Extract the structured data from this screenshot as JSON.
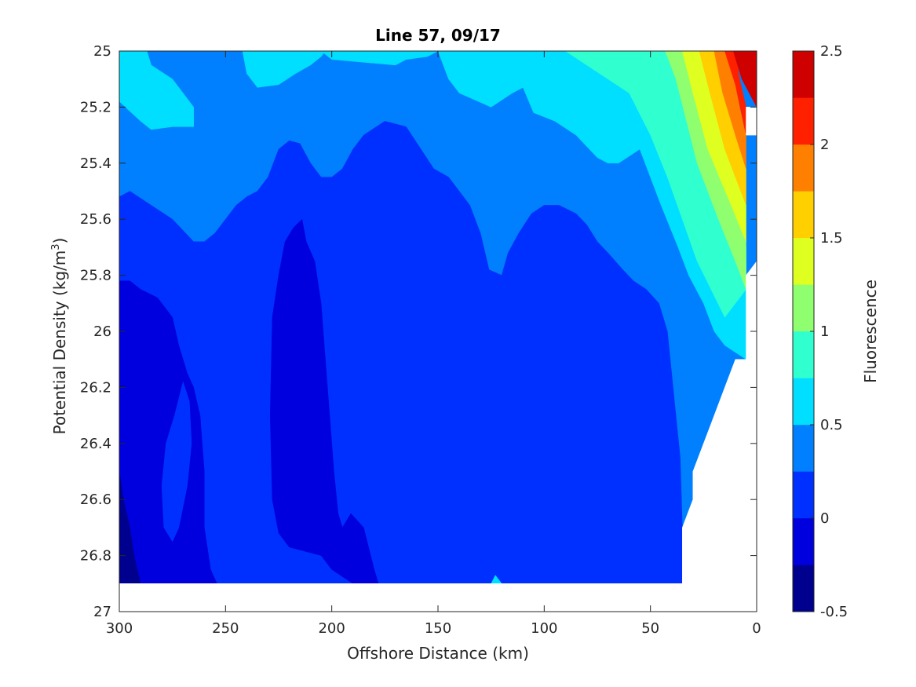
{
  "chart_data": {
    "type": "contourf",
    "title": "Line 57, 09/17",
    "xlabel": "Offshore Distance (km)",
    "ylabel_prefix": "Potential Density (kg/m",
    "ylabel_sup": "3",
    "ylabel_suffix": ")",
    "colorbar_label": "Fluorescence",
    "xlim": [
      300,
      0
    ],
    "ylim": [
      25,
      27
    ],
    "x_reversed": true,
    "y_reversed": true,
    "xticks": [
      300,
      250,
      200,
      150,
      100,
      50,
      0
    ],
    "xtick_labels": [
      "300",
      "250",
      "200",
      "150",
      "100",
      "50",
      "0"
    ],
    "yticks": [
      25,
      25.2,
      25.4,
      25.6,
      25.8,
      26,
      26.2,
      26.4,
      26.6,
      26.8,
      27
    ],
    "ytick_labels": [
      "25",
      "25.2",
      "25.4",
      "25.6",
      "25.8",
      "26",
      "26.2",
      "26.4",
      "26.6",
      "26.8",
      "27"
    ],
    "colorbar_range": [
      -0.5,
      2.5
    ],
    "colorbar_ticks": [
      -0.5,
      0,
      0.5,
      1,
      1.5,
      2,
      2.5
    ],
    "colorbar_tick_labels": [
      "-0.5",
      "0",
      "0.5",
      "1",
      "1.5",
      "2",
      "2.5"
    ],
    "levels": [
      -0.5,
      -0.25,
      0,
      0.25,
      0.5,
      0.75,
      1,
      1.25,
      1.5,
      1.75,
      2,
      2.25,
      2.5
    ],
    "level_colors": [
      "#00008f",
      "#0000df",
      "#0030ff",
      "#0080ff",
      "#00dfff",
      "#30ffcf",
      "#8fff70",
      "#dfff20",
      "#ffcf00",
      "#ff7f00",
      "#ff2000",
      "#cf0000"
    ],
    "data_extent": {
      "x": [
        300,
        0
      ],
      "y_top": 25,
      "y_bottom": 26.9
    },
    "contour_regions": [
      {
        "level": 1,
        "color": "#0080ff",
        "points": [
          [
            300,
            25
          ],
          [
            300,
            26.9
          ],
          [
            0,
            26.9
          ],
          [
            0,
            25
          ]
        ]
      },
      {
        "level": 4,
        "color": "#00dfff",
        "points": [
          [
            300,
            25
          ],
          [
            300,
            25.18
          ],
          [
            290,
            25.25
          ],
          [
            285,
            25.28
          ],
          [
            275,
            25.27
          ],
          [
            270,
            25.27
          ],
          [
            265,
            25.27
          ],
          [
            265,
            25.2
          ],
          [
            270,
            25.15
          ],
          [
            275,
            25.1
          ],
          [
            285,
            25.05
          ],
          [
            287,
            25
          ]
        ]
      },
      {
        "level": 4,
        "color": "#00dfff",
        "points": [
          [
            222,
            25
          ],
          [
            205,
            25
          ],
          [
            200,
            25.03
          ],
          [
            170,
            25.05
          ],
          [
            165,
            25.03
          ],
          [
            155,
            25.02
          ],
          [
            150,
            25
          ]
        ]
      },
      {
        "level": 4,
        "color": "#00dfff",
        "points": [
          [
            150,
            25
          ],
          [
            145,
            25.1
          ],
          [
            140,
            25.15
          ],
          [
            125,
            25.2
          ],
          [
            115,
            25.15
          ],
          [
            110,
            25.13
          ],
          [
            105,
            25.22
          ],
          [
            95,
            25.25
          ],
          [
            85,
            25.3
          ],
          [
            75,
            25.38
          ],
          [
            70,
            25.4
          ],
          [
            65,
            25.4
          ],
          [
            55,
            25.35
          ],
          [
            45,
            25.55
          ],
          [
            37,
            25.7
          ],
          [
            32,
            25.8
          ],
          [
            25,
            25.9
          ],
          [
            20,
            26.0
          ],
          [
            15,
            26.05
          ],
          [
            5,
            26.1
          ],
          [
            5,
            25.75
          ],
          [
            12,
            25.6
          ],
          [
            25,
            25.25
          ],
          [
            32,
            25.05
          ],
          [
            38,
            25
          ]
        ]
      },
      {
        "level": 5,
        "color": "#30ffcf",
        "points": [
          [
            90,
            25
          ],
          [
            80,
            25.05
          ],
          [
            70,
            25.1
          ],
          [
            60,
            25.15
          ],
          [
            50,
            25.3
          ],
          [
            42,
            25.45
          ],
          [
            35,
            25.6
          ],
          [
            28,
            25.75
          ],
          [
            15,
            25.95
          ],
          [
            5,
            25.85
          ],
          [
            5,
            25.7
          ],
          [
            12,
            25.55
          ],
          [
            22,
            25.25
          ],
          [
            30,
            25.05
          ],
          [
            33,
            25
          ]
        ]
      },
      {
        "level": 6,
        "color": "#8fff70",
        "points": [
          [
            43,
            25
          ],
          [
            38,
            25.1
          ],
          [
            33,
            25.25
          ],
          [
            28,
            25.4
          ],
          [
            18,
            25.6
          ],
          [
            10,
            25.75
          ],
          [
            5,
            25.85
          ],
          [
            5,
            25.68
          ],
          [
            12,
            25.5
          ],
          [
            18,
            25.25
          ],
          [
            24,
            25.05
          ],
          [
            26,
            25
          ]
        ]
      },
      {
        "level": 7,
        "color": "#dfff20",
        "points": [
          [
            35,
            25
          ],
          [
            30,
            25.15
          ],
          [
            23,
            25.35
          ],
          [
            12,
            25.55
          ],
          [
            5,
            25.68
          ],
          [
            5,
            25.55
          ],
          [
            10,
            25.4
          ],
          [
            15,
            25.2
          ],
          [
            19,
            25
          ]
        ]
      },
      {
        "level": 8,
        "color": "#ffcf00",
        "points": [
          [
            27,
            25
          ],
          [
            22,
            25.15
          ],
          [
            15,
            25.35
          ],
          [
            5,
            25.55
          ],
          [
            5,
            25.42
          ],
          [
            10,
            25.3
          ],
          [
            13,
            25.15
          ],
          [
            16,
            25
          ]
        ]
      },
      {
        "level": 9,
        "color": "#ff7f00",
        "points": [
          [
            20,
            25
          ],
          [
            16,
            25.15
          ],
          [
            10,
            25.3
          ],
          [
            5,
            25.42
          ],
          [
            5,
            25.3
          ],
          [
            8,
            25.2
          ],
          [
            11,
            25.08
          ],
          [
            13,
            25
          ]
        ]
      },
      {
        "level": 10,
        "color": "#ff2000",
        "points": [
          [
            15,
            25
          ],
          [
            10,
            25.12
          ],
          [
            5,
            25.3
          ],
          [
            5,
            25.2
          ],
          [
            8,
            25.1
          ],
          [
            10,
            25
          ]
        ]
      },
      {
        "level": 11,
        "color": "#cf0000",
        "points": [
          [
            11,
            25
          ],
          [
            7,
            25.1
          ],
          [
            0,
            25.2
          ],
          [
            0,
            25
          ],
          [
            3,
            25
          ]
        ]
      },
      {
        "level": 2,
        "color": "#0030ff",
        "points": [
          [
            300,
            25.52
          ],
          [
            295,
            25.5
          ],
          [
            285,
            25.55
          ],
          [
            275,
            25.6
          ],
          [
            265,
            25.68
          ],
          [
            260,
            25.68
          ],
          [
            255,
            25.65
          ],
          [
            245,
            25.55
          ],
          [
            240,
            25.52
          ],
          [
            235,
            25.5
          ],
          [
            230,
            25.45
          ],
          [
            225,
            25.35
          ],
          [
            220,
            25.32
          ],
          [
            215,
            25.33
          ],
          [
            210,
            25.4
          ],
          [
            205,
            25.45
          ],
          [
            200,
            25.45
          ],
          [
            195,
            25.42
          ],
          [
            190,
            25.35
          ],
          [
            185,
            25.3
          ],
          [
            175,
            25.25
          ],
          [
            165,
            25.27
          ],
          [
            158,
            25.35
          ],
          [
            152,
            25.42
          ],
          [
            145,
            25.45
          ],
          [
            140,
            25.5
          ],
          [
            135,
            25.55
          ],
          [
            130,
            25.65
          ],
          [
            126,
            25.78
          ],
          [
            120,
            25.8
          ],
          [
            117,
            25.72
          ],
          [
            112,
            25.65
          ],
          [
            106,
            25.58
          ],
          [
            100,
            25.55
          ],
          [
            93,
            25.55
          ],
          [
            85,
            25.58
          ],
          [
            80,
            25.62
          ],
          [
            75,
            25.68
          ],
          [
            70,
            25.72
          ],
          [
            63,
            25.78
          ],
          [
            58,
            25.82
          ],
          [
            52,
            25.85
          ],
          [
            46,
            25.9
          ],
          [
            42,
            26.0
          ],
          [
            40,
            26.15
          ],
          [
            38,
            26.3
          ],
          [
            36,
            26.45
          ],
          [
            35,
            26.7
          ],
          [
            35,
            26.9
          ],
          [
            300,
            26.9
          ]
        ]
      },
      {
        "level": 1,
        "color": "#0000df",
        "points": [
          [
            300,
            25.82
          ],
          [
            295,
            25.82
          ],
          [
            290,
            25.85
          ],
          [
            282,
            25.88
          ],
          [
            275,
            25.95
          ],
          [
            272,
            26.05
          ],
          [
            268,
            26.15
          ],
          [
            265,
            26.2
          ],
          [
            262,
            26.3
          ],
          [
            260,
            26.5
          ],
          [
            260,
            26.7
          ],
          [
            257,
            26.85
          ],
          [
            254,
            26.9
          ],
          [
            300,
            26.9
          ]
        ]
      },
      {
        "level": 1,
        "color": "#0000df",
        "points": [
          [
            225,
            25.8
          ],
          [
            222,
            25.68
          ],
          [
            218,
            25.63
          ],
          [
            214,
            25.6
          ],
          [
            212,
            25.68
          ],
          [
            208,
            25.75
          ],
          [
            205,
            25.9
          ],
          [
            203,
            26.1
          ],
          [
            201,
            26.3
          ],
          [
            199,
            26.5
          ],
          [
            197,
            26.65
          ],
          [
            195,
            26.7
          ],
          [
            191,
            26.65
          ],
          [
            185,
            26.7
          ],
          [
            180,
            26.85
          ],
          [
            178,
            26.9
          ],
          [
            190,
            26.9
          ],
          [
            200,
            26.85
          ],
          [
            205,
            26.8
          ],
          [
            210,
            26.79
          ],
          [
            220,
            26.77
          ],
          [
            225,
            26.72
          ],
          [
            228,
            26.6
          ],
          [
            229,
            26.3
          ],
          [
            228,
            25.95
          ]
        ]
      },
      {
        "level": 0,
        "color": "#00008f",
        "points": [
          [
            300,
            26.5
          ],
          [
            298,
            26.6
          ],
          [
            295,
            26.7
          ],
          [
            293,
            26.8
          ],
          [
            290,
            26.9
          ],
          [
            300,
            26.9
          ]
        ]
      },
      {
        "level": 0,
        "color": "#0030ff",
        "points": [
          [
            270,
            26.18
          ],
          [
            274,
            26.3
          ],
          [
            278,
            26.4
          ],
          [
            280,
            26.55
          ],
          [
            279,
            26.7
          ],
          [
            275,
            26.75
          ],
          [
            272,
            26.7
          ],
          [
            268,
            26.55
          ],
          [
            266,
            26.4
          ],
          [
            267,
            26.25
          ]
        ]
      },
      {
        "level": 3,
        "color": "#00dfff",
        "points": [
          [
            242,
            25
          ],
          [
            240,
            25.08
          ],
          [
            235,
            25.13
          ],
          [
            225,
            25.12
          ],
          [
            217,
            25.08
          ],
          [
            210,
            25.05
          ],
          [
            205,
            25.02
          ],
          [
            203,
            25
          ]
        ]
      },
      {
        "level": 3,
        "color": "#00dfff",
        "points": [
          [
            125,
            26.9
          ],
          [
            120,
            26.9
          ],
          [
            123,
            26.87
          ]
        ]
      }
    ],
    "blank_regions": [
      {
        "points": [
          [
            0,
            25.2
          ],
          [
            5,
            25.2
          ],
          [
            5,
            25.3
          ],
          [
            0,
            25.3
          ]
        ]
      },
      {
        "points": [
          [
            0,
            25.75
          ],
          [
            5,
            25.8
          ],
          [
            5,
            26.1
          ],
          [
            10,
            26.1
          ],
          [
            20,
            26.3
          ],
          [
            30,
            26.5
          ],
          [
            30,
            26.6
          ],
          [
            35,
            26.7
          ],
          [
            35,
            26.9
          ],
          [
            0,
            26.9
          ]
        ]
      },
      {
        "points": [
          [
            300,
            26.9
          ],
          [
            300,
            27
          ],
          [
            0,
            27
          ],
          [
            0,
            26.9
          ]
        ]
      }
    ]
  }
}
